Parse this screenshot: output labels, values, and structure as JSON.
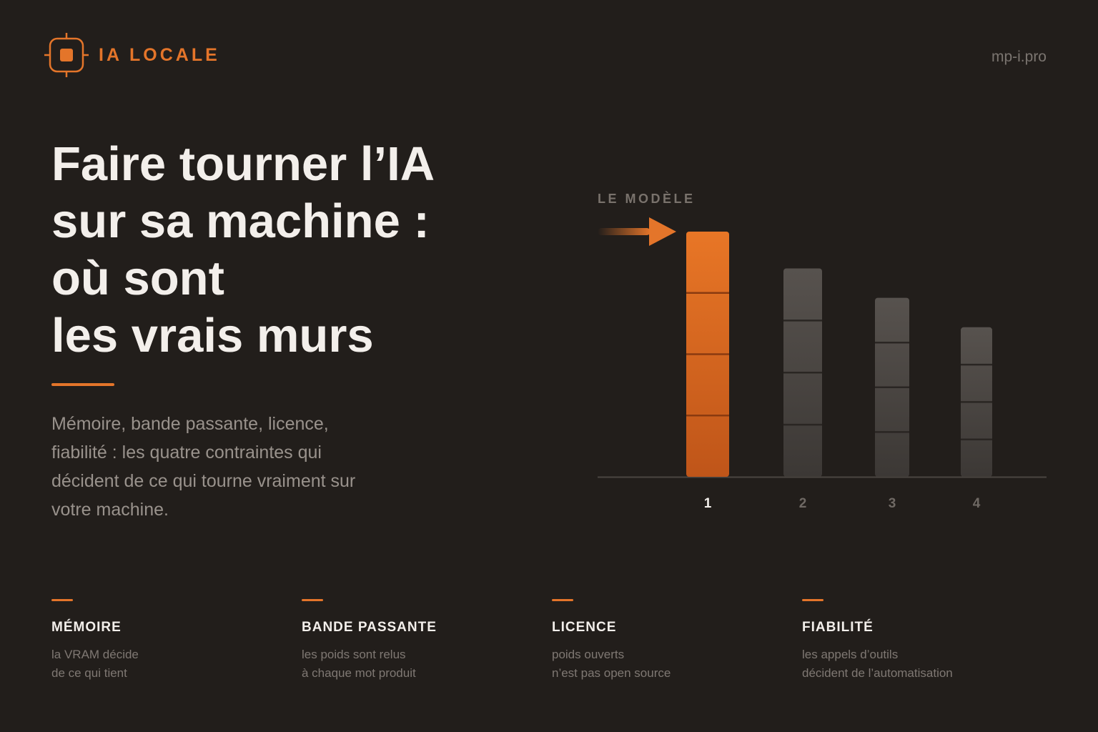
{
  "brand": {
    "name": "IA LOCALE",
    "logo_icon": "target-square-icon",
    "accent": "#e4752a"
  },
  "site": "mp-i.pro",
  "headline": [
    "Faire tourner l’IA",
    "sur sa machine :",
    "où sont",
    "les vrais murs"
  ],
  "lead": "Mémoire, bande passante, licence, fiabilité : les quatre contraintes qui décident de ce qui tourne vraiment sur votre machine.",
  "chart_label": "LE MODÈLE",
  "chart_data": {
    "type": "bar",
    "categories": [
      "1",
      "2",
      "3",
      "4"
    ],
    "values": [
      100,
      85,
      73,
      61
    ],
    "highlight_index": 0,
    "segments": 4,
    "colors": {
      "highlight": "#e4752a",
      "muted": "#4a4541"
    }
  },
  "cards": [
    {
      "title": "MÉMOIRE",
      "lines": [
        "la VRAM décide",
        "de ce qui tient"
      ]
    },
    {
      "title": "BANDE PASSANTE",
      "lines": [
        "les poids sont relus",
        "à chaque mot produit"
      ]
    },
    {
      "title": "LICENCE",
      "lines": [
        "poids ouverts",
        "n’est pas open source"
      ]
    },
    {
      "title": "FIABILITÉ",
      "lines": [
        "les appels d’outils",
        "décident de l’automatisation"
      ]
    }
  ]
}
